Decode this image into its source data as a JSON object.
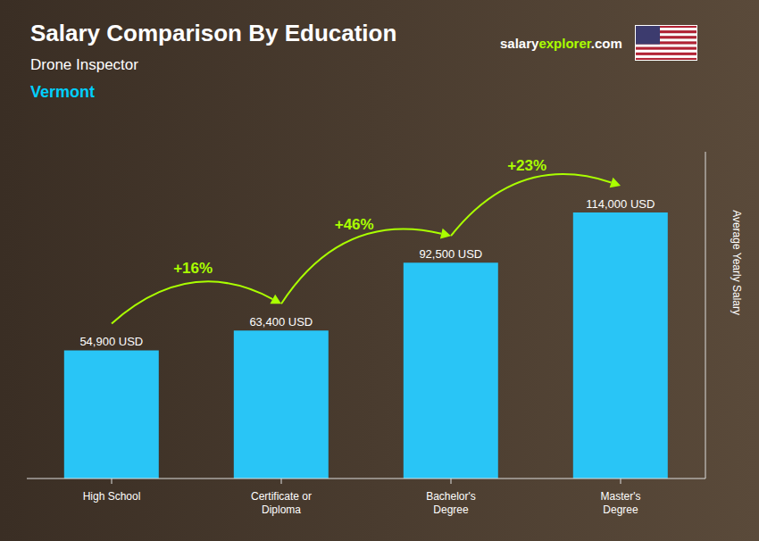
{
  "chart_data": {
    "type": "bar",
    "title": "Salary Comparison By Education",
    "subtitle": "Drone Inspector",
    "location": "Vermont",
    "brand": [
      "salary",
      "explorer",
      ".com"
    ],
    "categories": [
      "High School",
      "Certificate or\nDiploma",
      "Bachelor's\nDegree",
      "Master's\nDegree"
    ],
    "values": [
      54900,
      63400,
      92500,
      114000
    ],
    "value_labels": [
      "54,900 USD",
      "63,400 USD",
      "92,500 USD",
      "114,000 USD"
    ],
    "color": "#29C5F6",
    "ylabel": "Average Yearly Salary",
    "ylim": [
      0,
      140000
    ],
    "tick_labels": "x",
    "grid": false,
    "data_labels": true,
    "annotations": [
      {
        "text": "+16%",
        "from": "High School",
        "to": "Certificate or\nDiploma",
        "color": "#AAFF00"
      },
      {
        "text": "+46%",
        "from": "Certificate or\nDiploma",
        "to": "Bachelor's\nDegree",
        "color": "#AAFF00"
      },
      {
        "text": "+23%",
        "from": "Bachelor's\nDegree",
        "to": "Master's\nDegree",
        "color": "#AAFF00"
      }
    ]
  }
}
